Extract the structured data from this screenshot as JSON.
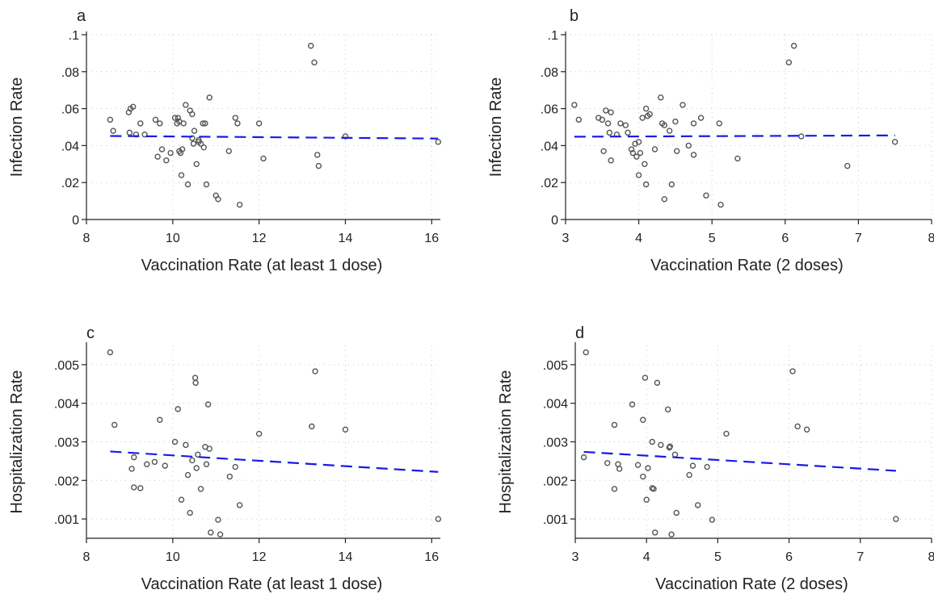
{
  "colors": {
    "points": "#555555",
    "fit": "#1a1ae6",
    "axis": "#222222"
  },
  "chart_data": [
    {
      "panel": "a",
      "type": "scatter",
      "xlabel": "Vaccination Rate (at least 1 dose)",
      "ylabel": "Infection Rate",
      "xlim": [
        8,
        16.2
      ],
      "ylim": [
        0,
        0.1
      ],
      "xticks": [
        8,
        10,
        12,
        14,
        16
      ],
      "xtick_labels": [
        "8",
        "10",
        "12",
        "14",
        "16"
      ],
      "yticks": [
        0,
        0.02,
        0.04,
        0.06,
        0.08,
        0.1
      ],
      "ytick_labels": [
        "0",
        ".02",
        ".04",
        ".06",
        ".08",
        ".1"
      ],
      "grid": true,
      "points": [
        [
          8.55,
          0.054
        ],
        [
          8.62,
          0.048
        ],
        [
          8.98,
          0.058
        ],
        [
          9.02,
          0.06
        ],
        [
          9.08,
          0.061
        ],
        [
          9.0,
          0.047
        ],
        [
          9.15,
          0.046
        ],
        [
          9.25,
          0.052
        ],
        [
          9.35,
          0.046
        ],
        [
          9.6,
          0.054
        ],
        [
          9.7,
          0.052
        ],
        [
          9.65,
          0.034
        ],
        [
          9.75,
          0.038
        ],
        [
          9.85,
          0.032
        ],
        [
          9.95,
          0.036
        ],
        [
          10.05,
          0.055
        ],
        [
          10.1,
          0.052
        ],
        [
          10.12,
          0.055
        ],
        [
          10.15,
          0.053
        ],
        [
          10.15,
          0.037
        ],
        [
          10.18,
          0.036
        ],
        [
          10.2,
          0.024
        ],
        [
          10.22,
          0.038
        ],
        [
          10.25,
          0.052
        ],
        [
          10.3,
          0.062
        ],
        [
          10.35,
          0.019
        ],
        [
          10.4,
          0.059
        ],
        [
          10.45,
          0.057
        ],
        [
          10.45,
          0.044
        ],
        [
          10.48,
          0.041
        ],
        [
          10.5,
          0.048
        ],
        [
          10.55,
          0.03
        ],
        [
          10.6,
          0.043
        ],
        [
          10.6,
          0.042
        ],
        [
          10.65,
          0.041
        ],
        [
          10.7,
          0.052
        ],
        [
          10.72,
          0.039
        ],
        [
          10.75,
          0.052
        ],
        [
          10.78,
          0.019
        ],
        [
          10.85,
          0.066
        ],
        [
          11.0,
          0.013
        ],
        [
          11.05,
          0.011
        ],
        [
          11.3,
          0.037
        ],
        [
          11.45,
          0.055
        ],
        [
          11.5,
          0.052
        ],
        [
          11.55,
          0.008
        ],
        [
          12.0,
          0.052
        ],
        [
          12.1,
          0.033
        ],
        [
          13.2,
          0.094
        ],
        [
          13.28,
          0.085
        ],
        [
          13.35,
          0.035
        ],
        [
          13.38,
          0.029
        ],
        [
          14.0,
          0.045
        ],
        [
          16.15,
          0.042
        ]
      ],
      "fit": {
        "x": [
          8.55,
          16.15
        ],
        "y": [
          0.0452,
          0.0438
        ]
      }
    },
    {
      "panel": "b",
      "type": "scatter",
      "xlabel": "Vaccination Rate (2 doses)",
      "ylabel": "Infection Rate",
      "xlim": [
        3,
        8
      ],
      "ylim": [
        0,
        0.1
      ],
      "xticks": [
        3,
        4,
        5,
        6,
        7,
        8
      ],
      "xtick_labels": [
        "3",
        "4",
        "5",
        "6",
        "7",
        "8"
      ],
      "yticks": [
        0,
        0.02,
        0.04,
        0.06,
        0.08,
        0.1
      ],
      "ytick_labels": [
        "0",
        ".02",
        ".04",
        ".06",
        ".08",
        ".1"
      ],
      "grid": true,
      "points": [
        [
          3.12,
          0.062
        ],
        [
          3.18,
          0.054
        ],
        [
          3.45,
          0.055
        ],
        [
          3.5,
          0.054
        ],
        [
          3.52,
          0.037
        ],
        [
          3.55,
          0.059
        ],
        [
          3.58,
          0.052
        ],
        [
          3.6,
          0.047
        ],
        [
          3.62,
          0.058
        ],
        [
          3.62,
          0.032
        ],
        [
          3.7,
          0.046
        ],
        [
          3.75,
          0.052
        ],
        [
          3.82,
          0.051
        ],
        [
          3.85,
          0.047
        ],
        [
          3.9,
          0.038
        ],
        [
          3.92,
          0.036
        ],
        [
          3.95,
          0.041
        ],
        [
          3.97,
          0.034
        ],
        [
          4.0,
          0.042
        ],
        [
          4.0,
          0.024
        ],
        [
          4.02,
          0.036
        ],
        [
          4.05,
          0.055
        ],
        [
          4.08,
          0.03
        ],
        [
          4.1,
          0.06
        ],
        [
          4.1,
          0.019
        ],
        [
          4.12,
          0.056
        ],
        [
          4.15,
          0.057
        ],
        [
          4.22,
          0.038
        ],
        [
          4.3,
          0.066
        ],
        [
          4.32,
          0.052
        ],
        [
          4.35,
          0.051
        ],
        [
          4.35,
          0.011
        ],
        [
          4.42,
          0.048
        ],
        [
          4.45,
          0.019
        ],
        [
          4.5,
          0.053
        ],
        [
          4.52,
          0.037
        ],
        [
          4.6,
          0.062
        ],
        [
          4.68,
          0.04
        ],
        [
          4.75,
          0.035
        ],
        [
          4.75,
          0.052
        ],
        [
          4.85,
          0.055
        ],
        [
          4.92,
          0.013
        ],
        [
          5.1,
          0.052
        ],
        [
          5.12,
          0.008
        ],
        [
          5.35,
          0.033
        ],
        [
          6.05,
          0.085
        ],
        [
          6.12,
          0.094
        ],
        [
          6.22,
          0.045
        ],
        [
          6.85,
          0.029
        ],
        [
          7.5,
          0.042
        ]
      ],
      "fit": {
        "x": [
          3.12,
          7.5
        ],
        "y": [
          0.0448,
          0.0455
        ]
      }
    },
    {
      "panel": "c",
      "type": "scatter",
      "xlabel": "Vaccination Rate (at least 1 dose)",
      "ylabel": "Hospitalization Rate",
      "xlim": [
        8,
        16.2
      ],
      "ylim": [
        0.0005,
        0.0055
      ],
      "xticks": [
        8,
        10,
        12,
        14,
        16
      ],
      "xtick_labels": [
        "8",
        "10",
        "12",
        "14",
        "16"
      ],
      "yticks": [
        0.001,
        0.002,
        0.003,
        0.004,
        0.005
      ],
      "ytick_labels": [
        ".001",
        ".002",
        ".003",
        ".004",
        ".005"
      ],
      "grid": true,
      "points": [
        [
          8.55,
          0.00532
        ],
        [
          8.65,
          0.00344
        ],
        [
          9.05,
          0.0023
        ],
        [
          9.1,
          0.00182
        ],
        [
          9.1,
          0.0026
        ],
        [
          9.25,
          0.0018
        ],
        [
          9.4,
          0.00242
        ],
        [
          9.58,
          0.00248
        ],
        [
          9.7,
          0.00357
        ],
        [
          9.82,
          0.00238
        ],
        [
          10.05,
          0.003
        ],
        [
          10.12,
          0.00385
        ],
        [
          10.2,
          0.0015
        ],
        [
          10.3,
          0.00292
        ],
        [
          10.35,
          0.00214
        ],
        [
          10.4,
          0.00116
        ],
        [
          10.45,
          0.00252
        ],
        [
          10.52,
          0.00466
        ],
        [
          10.53,
          0.00453
        ],
        [
          10.55,
          0.00232
        ],
        [
          10.58,
          0.00267
        ],
        [
          10.65,
          0.00178
        ],
        [
          10.75,
          0.00287
        ],
        [
          10.78,
          0.00242
        ],
        [
          10.82,
          0.00397
        ],
        [
          10.85,
          0.00282
        ],
        [
          10.88,
          0.00065
        ],
        [
          11.05,
          0.00098
        ],
        [
          11.1,
          0.0006
        ],
        [
          11.32,
          0.0021
        ],
        [
          11.45,
          0.00235
        ],
        [
          11.55,
          0.00136
        ],
        [
          12.0,
          0.00321
        ],
        [
          13.22,
          0.0034
        ],
        [
          13.3,
          0.00483
        ],
        [
          14.0,
          0.00332
        ],
        [
          16.15,
          0.001
        ]
      ],
      "fit": {
        "x": [
          8.55,
          16.15
        ],
        "y": [
          0.00275,
          0.00222
        ]
      }
    },
    {
      "panel": "d",
      "type": "scatter",
      "xlabel": "Vaccination Rate (2 doses)",
      "ylabel": "Hospitalization Rate",
      "xlim": [
        3,
        8
      ],
      "ylim": [
        0.0005,
        0.0055
      ],
      "xticks": [
        3,
        4,
        5,
        6,
        7,
        8
      ],
      "xtick_labels": [
        "3",
        "4",
        "5",
        "6",
        "7",
        "8"
      ],
      "yticks": [
        0.001,
        0.002,
        0.003,
        0.004,
        0.005
      ],
      "ytick_labels": [
        ".001",
        ".002",
        ".003",
        ".004",
        ".005"
      ],
      "grid": true,
      "points": [
        [
          3.15,
          0.00532
        ],
        [
          3.12,
          0.0026
        ],
        [
          3.45,
          0.00245
        ],
        [
          3.55,
          0.00344
        ],
        [
          3.55,
          0.00178
        ],
        [
          3.6,
          0.00242
        ],
        [
          3.62,
          0.0023
        ],
        [
          3.8,
          0.00397
        ],
        [
          3.88,
          0.0024
        ],
        [
          3.95,
          0.00357
        ],
        [
          3.95,
          0.0021
        ],
        [
          3.98,
          0.00466
        ],
        [
          4.0,
          0.0015
        ],
        [
          4.02,
          0.00232
        ],
        [
          4.08,
          0.003
        ],
        [
          4.08,
          0.0018
        ],
        [
          4.1,
          0.00178
        ],
        [
          4.12,
          0.00065
        ],
        [
          4.15,
          0.00453
        ],
        [
          4.2,
          0.00292
        ],
        [
          4.3,
          0.00384
        ],
        [
          4.32,
          0.00285
        ],
        [
          4.33,
          0.00288
        ],
        [
          4.35,
          0.0006
        ],
        [
          4.4,
          0.00267
        ],
        [
          4.42,
          0.00116
        ],
        [
          4.6,
          0.00214
        ],
        [
          4.65,
          0.00238
        ],
        [
          4.72,
          0.00136
        ],
        [
          4.85,
          0.00235
        ],
        [
          4.92,
          0.00098
        ],
        [
          5.12,
          0.00321
        ],
        [
          6.05,
          0.00483
        ],
        [
          6.12,
          0.0034
        ],
        [
          6.25,
          0.00332
        ],
        [
          7.5,
          0.001
        ]
      ],
      "fit": {
        "x": [
          3.12,
          7.5
        ],
        "y": [
          0.00274,
          0.00225
        ]
      }
    }
  ]
}
